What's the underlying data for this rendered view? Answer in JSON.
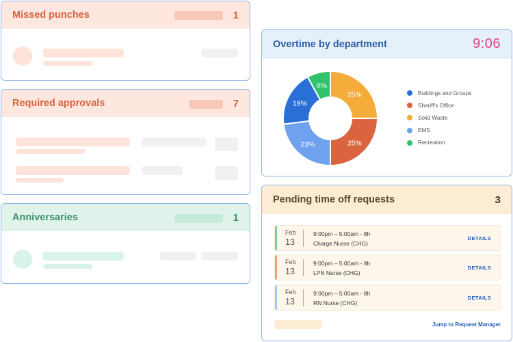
{
  "missed": {
    "title": "Missed punches",
    "count": "1"
  },
  "approvals": {
    "title": "Required approvals",
    "count": "7"
  },
  "anniversaries": {
    "title": "Anniversaries",
    "count": "1"
  },
  "overtime": {
    "title": "Overtime by department",
    "clock": "9:06",
    "legend": [
      {
        "label": "Buildings and Groups",
        "color": "#2a6fd6"
      },
      {
        "label": "Sheriff's Office",
        "color": "#d9643e"
      },
      {
        "label": "Solid Waste",
        "color": "#f5ac3a"
      },
      {
        "label": "EMS",
        "color": "#6fa2ee"
      },
      {
        "label": "Recreation",
        "color": "#2fc36c"
      }
    ]
  },
  "chart_data": {
    "type": "pie",
    "title": "Overtime by department",
    "categories": [
      "Solid Waste",
      "Sheriff's Office",
      "EMS",
      "Buildings and Groups",
      "Recreation"
    ],
    "values": [
      25,
      25,
      23,
      19,
      8
    ],
    "labels": [
      "25%",
      "25%",
      "23%",
      "19%",
      "8%"
    ],
    "colors": [
      "#f5ac3a",
      "#d9643e",
      "#6fa2ee",
      "#2a6fd6",
      "#2fc36c"
    ],
    "donut": true,
    "legend_position": "right"
  },
  "pending": {
    "title": "Pending time off requests",
    "count": "3",
    "requests": [
      {
        "month": "Feb",
        "day": "13",
        "time": "9:00pm – 5:00am - 8h",
        "role": "Charge Nurse (CHG)",
        "accent": "#7ccda2",
        "details": "DETAILS"
      },
      {
        "month": "Feb",
        "day": "13",
        "time": "9:00pm – 5:00am - 8h",
        "role": "LPN Nurse (CHG)",
        "accent": "#f0a07f",
        "details": "DETAILS"
      },
      {
        "month": "Feb",
        "day": "13",
        "time": "9:00pm – 5:00am - 8h",
        "role": "RN Nurse (CHG)",
        "accent": "#a9c6ee",
        "details": "DETAILS"
      }
    ],
    "jump_label": "Jump to Request Manager"
  }
}
